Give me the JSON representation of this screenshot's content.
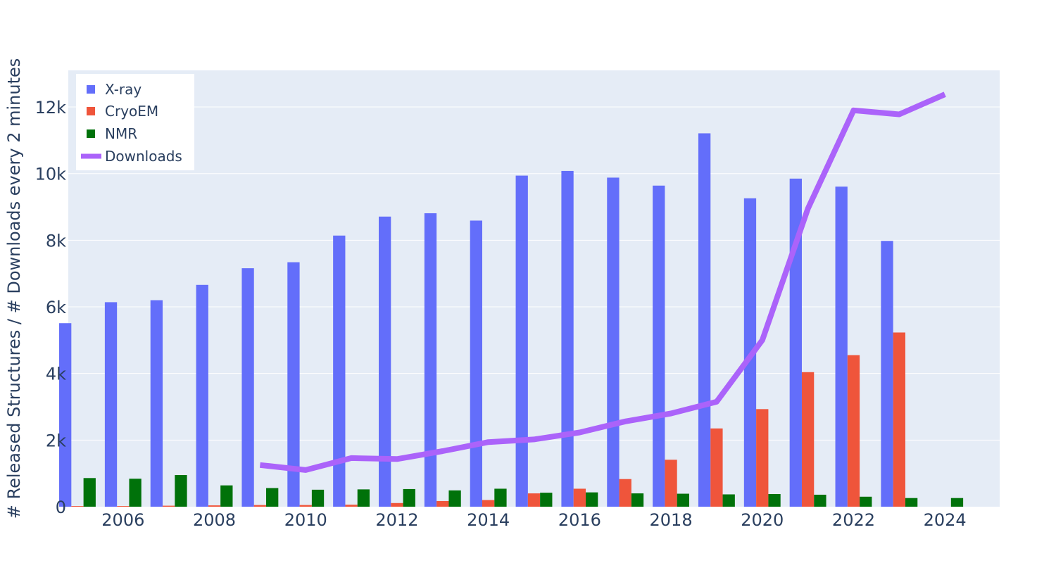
{
  "chart_data": {
    "type": "bar+line",
    "title": "",
    "xlabel": "",
    "ylabel": "# Released Structures / # Downloads every 2 minutes",
    "ylim": [
      0,
      13100
    ],
    "xlim": [
      2004.8,
      2025.2
    ],
    "x_ticks": [
      2006,
      2008,
      2010,
      2012,
      2014,
      2016,
      2018,
      2020,
      2022,
      2024
    ],
    "x_tick_labels": [
      "2006",
      "2008",
      "2010",
      "2012",
      "2014",
      "2016",
      "2018",
      "2020",
      "2022",
      "2024"
    ],
    "y_ticks": [
      0,
      2000,
      4000,
      6000,
      8000,
      10000,
      12000
    ],
    "y_tick_labels": [
      "0",
      "2k",
      "4k",
      "6k",
      "8k",
      "10k",
      "12k"
    ],
    "grid": true,
    "legend_position": "top-left",
    "years": [
      2005,
      2006,
      2007,
      2008,
      2009,
      2010,
      2011,
      2012,
      2013,
      2014,
      2015,
      2016,
      2017,
      2018,
      2019,
      2020,
      2021,
      2022,
      2023,
      2024
    ],
    "series": [
      {
        "name": "X-ray",
        "type": "bar",
        "color": "#636efa",
        "values": [
          5510,
          6140,
          6200,
          6660,
          7160,
          7340,
          8140,
          8710,
          8810,
          8590,
          9940,
          10080,
          9880,
          9640,
          11210,
          9260,
          9850,
          9610,
          7980,
          null
        ]
      },
      {
        "name": "CryoEM",
        "type": "bar",
        "color": "#ef553b",
        "values": [
          20,
          20,
          30,
          40,
          50,
          50,
          60,
          110,
          170,
          200,
          400,
          540,
          830,
          1410,
          2350,
          2930,
          4040,
          4550,
          5230,
          null
        ]
      },
      {
        "name": "NMR",
        "type": "bar",
        "color": "#00720a",
        "values": [
          860,
          840,
          950,
          640,
          560,
          510,
          520,
          530,
          490,
          540,
          420,
          430,
          400,
          390,
          370,
          380,
          360,
          300,
          260,
          260
        ]
      },
      {
        "name": "Downloads",
        "type": "line",
        "color": "#ab63fa",
        "x": [
          2009,
          2010,
          2011,
          2012,
          2013,
          2014,
          2015,
          2016,
          2017,
          2018,
          2019,
          2020,
          2021,
          2022,
          2023,
          2024
        ],
        "values": [
          1250,
          1100,
          1460,
          1430,
          1670,
          1940,
          2020,
          2230,
          2560,
          2800,
          3150,
          5000,
          8950,
          11900,
          11780,
          12380
        ]
      }
    ]
  }
}
